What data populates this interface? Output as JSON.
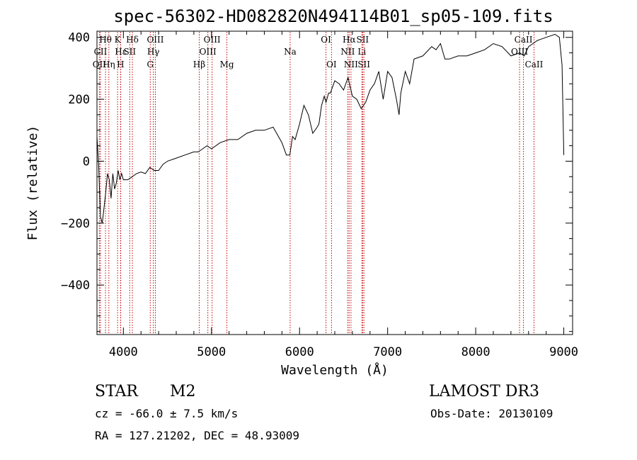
{
  "chart_data": {
    "type": "line",
    "title": "spec-56302-HD082820N494114B01_sp05-109.fits",
    "xlabel": "Wavelength (Å)",
    "ylabel": "Flux (relative)",
    "xlim": [
      3700,
      9100
    ],
    "ylim": [
      -560,
      420
    ],
    "xticks": [
      4000,
      5000,
      6000,
      7000,
      8000,
      9000
    ],
    "yticks": [
      -400,
      -200,
      0,
      200,
      400
    ],
    "series": [
      {
        "name": "spectrum",
        "x": [
          3700,
          3720,
          3740,
          3760,
          3780,
          3800,
          3820,
          3840,
          3860,
          3880,
          3900,
          3920,
          3940,
          3960,
          3980,
          4000,
          4050,
          4100,
          4150,
          4200,
          4250,
          4300,
          4350,
          4400,
          4450,
          4500,
          4600,
          4700,
          4800,
          4850,
          4900,
          4950,
          5000,
          5100,
          5200,
          5300,
          5400,
          5500,
          5600,
          5700,
          5800,
          5850,
          5890,
          5920,
          5950,
          6000,
          6050,
          6100,
          6150,
          6200,
          6220,
          6250,
          6280,
          6300,
          6330,
          6350,
          6400,
          6450,
          6500,
          6550,
          6600,
          6650,
          6700,
          6750,
          6800,
          6850,
          6900,
          6950,
          7000,
          7050,
          7100,
          7130,
          7150,
          7200,
          7250,
          7300,
          7400,
          7500,
          7550,
          7600,
          7650,
          7700,
          7800,
          7900,
          8000,
          8100,
          8200,
          8300,
          8400,
          8500,
          8550,
          8600,
          8650,
          8700,
          8800,
          8900,
          8950,
          8980,
          9000
        ],
        "y": [
          80,
          -20,
          -180,
          -200,
          -150,
          -100,
          -40,
          -60,
          -120,
          -40,
          -90,
          -70,
          -30,
          -60,
          -40,
          -60,
          -60,
          -50,
          -40,
          -35,
          -40,
          -20,
          -30,
          -30,
          -10,
          0,
          10,
          20,
          30,
          30,
          40,
          50,
          40,
          60,
          70,
          70,
          90,
          100,
          100,
          110,
          60,
          20,
          20,
          80,
          70,
          120,
          180,
          150,
          90,
          110,
          120,
          180,
          210,
          190,
          220,
          220,
          260,
          250,
          230,
          270,
          210,
          200,
          170,
          190,
          230,
          250,
          290,
          200,
          290,
          270,
          200,
          150,
          220,
          290,
          250,
          330,
          340,
          370,
          360,
          380,
          330,
          330,
          340,
          340,
          350,
          360,
          380,
          370,
          340,
          350,
          340,
          370,
          380,
          390,
          400,
          410,
          400,
          310,
          20
        ]
      }
    ],
    "spectral_lines": [
      {
        "label": "Hθ",
        "x": 3797,
        "row": 0
      },
      {
        "label": "CII",
        "x": 3740,
        "row": 1
      },
      {
        "label": "OII",
        "x": 3727,
        "row": 2
      },
      {
        "label": "K",
        "x": 3934,
        "row": 0
      },
      {
        "label": "Hε",
        "x": 3970,
        "row": 1
      },
      {
        "label": "Hη",
        "x": 3835,
        "row": 2
      },
      {
        "label": "H",
        "x": 3968,
        "row": 2
      },
      {
        "label": "Hδ",
        "x": 4102,
        "row": 0
      },
      {
        "label": "SII",
        "x": 4072,
        "row": 1
      },
      {
        "label": "OIII",
        "x": 4363,
        "row": 0
      },
      {
        "label": "Hγ",
        "x": 4340,
        "row": 1
      },
      {
        "label": "G",
        "x": 4305,
        "row": 2
      },
      {
        "label": "OIII",
        "x": 5007,
        "row": 0
      },
      {
        "label": "OIII",
        "x": 4959,
        "row": 1
      },
      {
        "label": "Hβ",
        "x": 4861,
        "row": 2
      },
      {
        "label": "Mg",
        "x": 5175,
        "row": 2
      },
      {
        "label": "Na",
        "x": 5893,
        "row": 1
      },
      {
        "label": "OI",
        "x": 6300,
        "row": 0
      },
      {
        "label": "OI",
        "x": 6363,
        "row": 2
      },
      {
        "label": "Hα",
        "x": 6563,
        "row": 0
      },
      {
        "label": "SII",
        "x": 6716,
        "row": 0
      },
      {
        "label": "NII",
        "x": 6548,
        "row": 1
      },
      {
        "label": "Li",
        "x": 6708,
        "row": 1
      },
      {
        "label": "NII",
        "x": 6584,
        "row": 2
      },
      {
        "label": "SII",
        "x": 6731,
        "row": 2
      },
      {
        "label": "CaII",
        "x": 8542,
        "row": 0
      },
      {
        "label": "OIII",
        "x": 8498,
        "row": 1
      },
      {
        "label": "CaII",
        "x": 8662,
        "row": 2
      }
    ],
    "line_color": "#c00000"
  },
  "info": {
    "object_class": "STAR",
    "subclass": "M2",
    "survey": "LAMOST DR3",
    "cz": "cz = -66.0 ± 7.5 km/s",
    "obs_date": "Obs-Date: 20130109",
    "coords": "RA = 127.21202, DEC =  48.93009"
  }
}
